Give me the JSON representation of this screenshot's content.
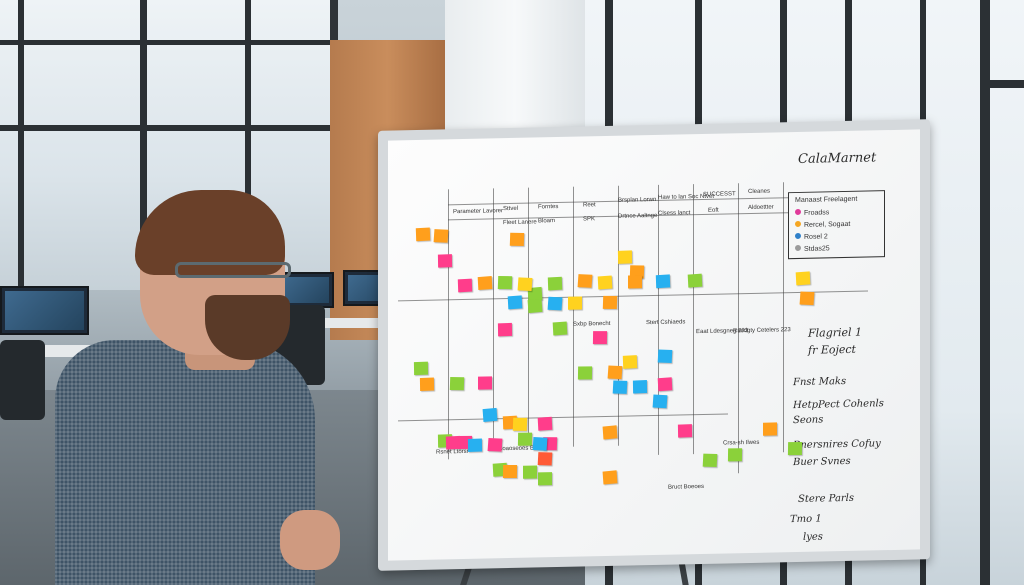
{
  "image": {
    "description_elements": [
      "whiteboard",
      "sticky-notes",
      "person",
      "office-background"
    ]
  },
  "whiteboard": {
    "corner_title": "CalaMarnet",
    "headers": [
      "Parameter Lavorer",
      "Sttvel",
      "Forntes",
      "Reet",
      "Brsplan Lorwn",
      "Haw to lan Soc Ntvet",
      "SUCCESST",
      "Cleanes"
    ],
    "subheaders": [
      "Fleet Lanere",
      "Bloam",
      "SPK",
      "Drtnce Aaltnge",
      "Clsess lanct",
      "Eoft",
      "Aldoettter"
    ],
    "legend": {
      "items": [
        {
          "label": "Manaast Freelagent",
          "color": ""
        },
        {
          "label": "Froadss",
          "color": "#e0399a"
        },
        {
          "label": "Rercel, Sogaat",
          "color": "#f5a623"
        },
        {
          "label": "Rosel 2",
          "color": "#2f80c9"
        },
        {
          "label": "Stdas25",
          "color": "#9b9b9b"
        }
      ]
    },
    "notes_right": [
      "Flagriel 1",
      "fr Eoject",
      "Fnst Maks",
      "HetpPect Cohenls",
      "Seons",
      "Bnersnires Cofuy",
      "Buer Svnes",
      "Stere Parls",
      "Tmo 1",
      "lyes"
    ],
    "column_notes": [
      "Sxbp Bonecht",
      "Stert Cshiaeds",
      "Eaat Ldesgneg 233",
      "Rsedgty Cetelers 223"
    ],
    "bottom_labels": [
      "Rsnet Ltorsr",
      "Coaoseoes Beoes",
      "Crsa-sh Ilwes",
      "Bruct Boeoes"
    ],
    "note_colors": {
      "pink": "#ff3d8b",
      "orange": "#ff9f1c",
      "yellow": "#ffd21f",
      "green": "#8bd13a",
      "blue": "#27b0f0",
      "red": "#ff5a36"
    }
  }
}
